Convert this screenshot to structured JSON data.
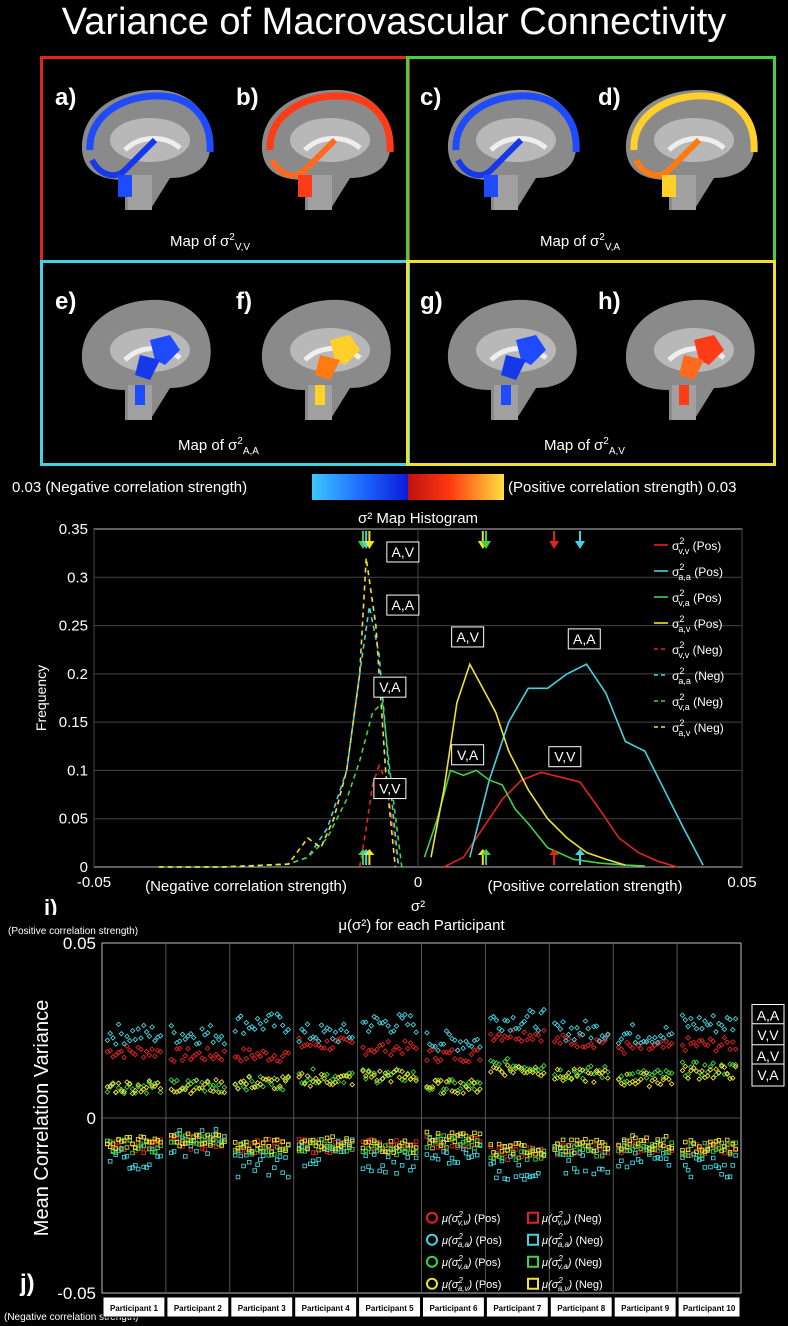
{
  "title": "Variance of Macrovascular Connectivity",
  "colors": {
    "red": "#e0251f",
    "green": "#43d143",
    "cyan": "#43d3e0",
    "yellow": "#f0e030",
    "neg": "#1f4bff",
    "pos": "#ff3b18"
  },
  "panels": {
    "letters": [
      "a)",
      "b)",
      "c)",
      "d)",
      "e)",
      "f)",
      "g)",
      "h)"
    ],
    "map_prefix": "Map of σ",
    "sup": "2",
    "subs": [
      "V,V",
      "V,A",
      "A,A",
      "A,V"
    ]
  },
  "colorbar": {
    "left_label": "0.03 (Negative correlation strength)",
    "right_label": "(Positive correlation strength) 0.03"
  },
  "chart_data": [
    {
      "type": "line",
      "panel_label": "i)",
      "title": "σ² Map Histogram",
      "xlabel": "σ²",
      "ylabel": "Frequency",
      "xlim": [
        -0.05,
        0.05
      ],
      "ylim": [
        0,
        0.35
      ],
      "xticks": [
        "-0.05",
        "0",
        "0.05"
      ],
      "yticks": [
        "0",
        "0.05",
        "0.1",
        "0.15",
        "0.2",
        "0.25",
        "0.3",
        "0.35"
      ],
      "annotations_text": {
        "neg": "(Negative correlation strength)",
        "pos": "(Positive correlation strength)"
      },
      "legend": [
        {
          "base": "σ",
          "sup": "2",
          "sub": "v,v",
          "suffix": " (Pos)",
          "color": "red",
          "dash": false
        },
        {
          "base": "σ",
          "sup": "2",
          "sub": "a,a",
          "suffix": " (Pos)",
          "color": "cyan",
          "dash": false
        },
        {
          "base": "σ",
          "sup": "2",
          "sub": "v,a",
          "suffix": " (Pos)",
          "color": "green",
          "dash": false
        },
        {
          "base": "σ",
          "sup": "2",
          "sub": "a,v",
          "suffix": " (Pos)",
          "color": "yellow",
          "dash": false
        },
        {
          "base": "σ",
          "sup": "2",
          "sub": "v,v",
          "suffix": " (Neg)",
          "color": "red",
          "dash": true
        },
        {
          "base": "σ",
          "sup": "2",
          "sub": "a,a",
          "suffix": " (Neg)",
          "color": "cyan",
          "dash": true
        },
        {
          "base": "σ",
          "sup": "2",
          "sub": "v,a",
          "suffix": " (Neg)",
          "color": "green",
          "dash": true
        },
        {
          "base": "σ",
          "sup": "2",
          "sub": "a,v",
          "suffix": " (Neg)",
          "color": "yellow",
          "dash": true
        }
      ],
      "series": [
        {
          "color": "red",
          "dash": false,
          "x": [
            0.004,
            0.007,
            0.01,
            0.013,
            0.016,
            0.019,
            0.022,
            0.025,
            0.028,
            0.031,
            0.034,
            0.037,
            0.04
          ],
          "y": [
            0,
            0.01,
            0.04,
            0.07,
            0.09,
            0.098,
            0.093,
            0.088,
            0.06,
            0.03,
            0.015,
            0.006,
            0
          ]
        },
        {
          "color": "cyan",
          "dash": false,
          "x": [
            0.008,
            0.011,
            0.014,
            0.017,
            0.02,
            0.023,
            0.026,
            0.029,
            0.032,
            0.035,
            0.038,
            0.041,
            0.044
          ],
          "y": [
            0.01,
            0.09,
            0.15,
            0.185,
            0.185,
            0.2,
            0.21,
            0.18,
            0.13,
            0.12,
            0.08,
            0.04,
            0.002
          ]
        },
        {
          "color": "green",
          "dash": false,
          "x": [
            0.001,
            0.003,
            0.005,
            0.007,
            0.009,
            0.011,
            0.013,
            0.015,
            0.017,
            0.02,
            0.024,
            0.028,
            0.032,
            0.035
          ],
          "y": [
            0.01,
            0.05,
            0.1,
            0.095,
            0.1,
            0.09,
            0.085,
            0.06,
            0.045,
            0.02,
            0.008,
            0.004,
            0.002,
            0.001
          ]
        },
        {
          "color": "yellow",
          "dash": false,
          "x": [
            0.002,
            0.004,
            0.006,
            0.008,
            0.01,
            0.012,
            0.014,
            0.017,
            0.02,
            0.023,
            0.026,
            0.029,
            0.032
          ],
          "y": [
            0.01,
            0.08,
            0.17,
            0.21,
            0.185,
            0.16,
            0.12,
            0.08,
            0.05,
            0.03,
            0.015,
            0.008,
            0.002
          ]
        },
        {
          "color": "red",
          "dash": true,
          "x": [
            -0.009,
            -0.008,
            -0.007,
            -0.006,
            -0.005,
            -0.004,
            -0.003
          ],
          "y": [
            0,
            0.04,
            0.085,
            0.105,
            0.09,
            0.05,
            0
          ]
        },
        {
          "color": "cyan",
          "dash": true,
          "x": [
            -0.04,
            -0.03,
            -0.02,
            -0.017,
            -0.014,
            -0.011,
            -0.009,
            -0.0075,
            -0.006,
            -0.0045,
            -0.003
          ],
          "y": [
            0,
            0,
            0.003,
            0.01,
            0.04,
            0.1,
            0.2,
            0.27,
            0.22,
            0.1,
            0
          ]
        },
        {
          "color": "green",
          "dash": true,
          "x": [
            -0.04,
            -0.03,
            -0.02,
            -0.017,
            -0.014,
            -0.011,
            -0.009,
            -0.007,
            -0.0055,
            -0.004,
            -0.0025
          ],
          "y": [
            0,
            0,
            0.003,
            0.01,
            0.03,
            0.07,
            0.11,
            0.16,
            0.17,
            0.08,
            0
          ]
        },
        {
          "color": "yellow",
          "dash": true,
          "x": [
            -0.04,
            -0.03,
            -0.02,
            -0.017,
            -0.015,
            -0.013,
            -0.011,
            -0.009,
            -0.008,
            -0.0065,
            -0.005,
            -0.0035
          ],
          "y": [
            0,
            0,
            0.003,
            0.03,
            0.02,
            0.05,
            0.1,
            0.2,
            0.32,
            0.25,
            0.1,
            0
          ]
        }
      ],
      "peak_labels": [
        {
          "text": "A,V",
          "x": -0.0045,
          "y": 0.32
        },
        {
          "text": "A,A",
          "x": -0.0045,
          "y": 0.265
        },
        {
          "text": "V,A",
          "x": -0.0065,
          "y": 0.18
        },
        {
          "text": "V,V",
          "x": -0.0065,
          "y": 0.075
        },
        {
          "text": "A,V",
          "x": 0.0055,
          "y": 0.232
        },
        {
          "text": "V,A",
          "x": 0.0055,
          "y": 0.11
        },
        {
          "text": "A,A",
          "x": 0.0235,
          "y": 0.23
        },
        {
          "text": "V,V",
          "x": 0.0205,
          "y": 0.108
        }
      ],
      "arrows": [
        {
          "color": "green",
          "x": -0.0085
        },
        {
          "color": "cyan",
          "x": -0.008
        },
        {
          "color": "yellow",
          "x": -0.0075
        },
        {
          "color": "yellow",
          "x": 0.01
        },
        {
          "color": "green",
          "x": 0.0105
        },
        {
          "color": "red",
          "x": 0.021
        },
        {
          "color": "cyan",
          "x": 0.025
        }
      ]
    },
    {
      "type": "scatter",
      "panel_label": "j)",
      "title": "μ(σ²) for each Participant",
      "ylabel": "Mean Correlation Variance",
      "ylim": [
        -0.05,
        0.05
      ],
      "yticks": [
        "-0.05",
        "0",
        "0.05"
      ],
      "top_note": "(Positive correlation strength)",
      "bottom_note": "(Negative correlation strength)",
      "categories": [
        "Participant 1",
        "Participant 2",
        "Participant 3",
        "Participant 4",
        "Participant 5",
        "Participant 6",
        "Participant 7",
        "Participant 8",
        "Participant 9",
        "Participant 10"
      ],
      "side_labels": [
        "A,A",
        "V,V",
        "A,V",
        "V,A"
      ],
      "points_per_participant": 20,
      "pos_series": [
        {
          "name": "μ(σ²v,v) (Pos)",
          "color": "red",
          "center": [
            0.019,
            0.018,
            0.018,
            0.021,
            0.02,
            0.018,
            0.024,
            0.022,
            0.02,
            0.021
          ],
          "spread": 0.002
        },
        {
          "name": "μ(σ²a,a) (Pos)",
          "color": "cyan",
          "center": [
            0.024,
            0.024,
            0.027,
            0.024,
            0.027,
            0.022,
            0.028,
            0.025,
            0.024,
            0.027
          ],
          "spread": 0.003
        },
        {
          "name": "μ(σ²v,a) (Pos)",
          "color": "green",
          "center": [
            0.009,
            0.009,
            0.01,
            0.012,
            0.012,
            0.009,
            0.015,
            0.013,
            0.012,
            0.014
          ],
          "spread": 0.002
        },
        {
          "name": "μ(σ²a,v) (Pos)",
          "color": "yellow",
          "center": [
            0.009,
            0.009,
            0.01,
            0.011,
            0.012,
            0.009,
            0.014,
            0.012,
            0.011,
            0.013
          ],
          "spread": 0.002
        }
      ],
      "neg_series": [
        {
          "name": "μ(σ²v,v) (Neg)",
          "color": "red",
          "center": [
            -0.008,
            -0.007,
            -0.008,
            -0.008,
            -0.008,
            -0.007,
            -0.01,
            -0.009,
            -0.008,
            -0.009
          ],
          "spread": 0.002
        },
        {
          "name": "μ(σ²a,a) (Neg)",
          "color": "cyan",
          "center": [
            -0.011,
            -0.007,
            -0.013,
            -0.01,
            -0.012,
            -0.009,
            -0.014,
            -0.012,
            -0.01,
            -0.013
          ],
          "spread": 0.004
        },
        {
          "name": "μ(σ²v,a) (Neg)",
          "color": "green",
          "center": [
            -0.008,
            -0.006,
            -0.009,
            -0.008,
            -0.009,
            -0.007,
            -0.01,
            -0.009,
            -0.008,
            -0.009
          ],
          "spread": 0.002
        },
        {
          "name": "μ(σ²a,v) (Neg)",
          "color": "yellow",
          "center": [
            -0.007,
            -0.006,
            -0.008,
            -0.007,
            -0.008,
            -0.006,
            -0.009,
            -0.008,
            -0.007,
            -0.008
          ],
          "spread": 0.002
        }
      ],
      "legend": [
        {
          "sub": "v,v",
          "color": "red"
        },
        {
          "sub": "a,a",
          "color": "cyan"
        },
        {
          "sub": "v,a",
          "color": "green"
        },
        {
          "sub": "a,v",
          "color": "yellow"
        }
      ],
      "legend_text": {
        "pos": " (Pos)",
        "neg": " (Neg)",
        "mu": "μ(σ",
        "close": ")"
      }
    }
  ]
}
